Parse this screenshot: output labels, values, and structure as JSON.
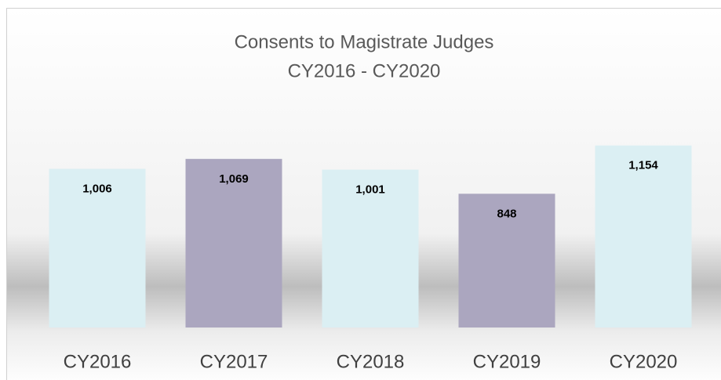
{
  "chart_data": {
    "type": "bar",
    "title": "Consents to Magistrate Judges",
    "subtitle": "CY2016 - CY2020",
    "categories": [
      "CY2016",
      "CY2017",
      "CY2018",
      "CY2019",
      "CY2020"
    ],
    "values": [
      1006,
      1069,
      1001,
      848,
      1154
    ],
    "value_labels": [
      "1,006",
      "1,069",
      "1,001",
      "848",
      "1,154"
    ],
    "colors": [
      "#dbeff3",
      "#aba6bf",
      "#dbeff3",
      "#aba6bf",
      "#dbeff3"
    ]
  }
}
